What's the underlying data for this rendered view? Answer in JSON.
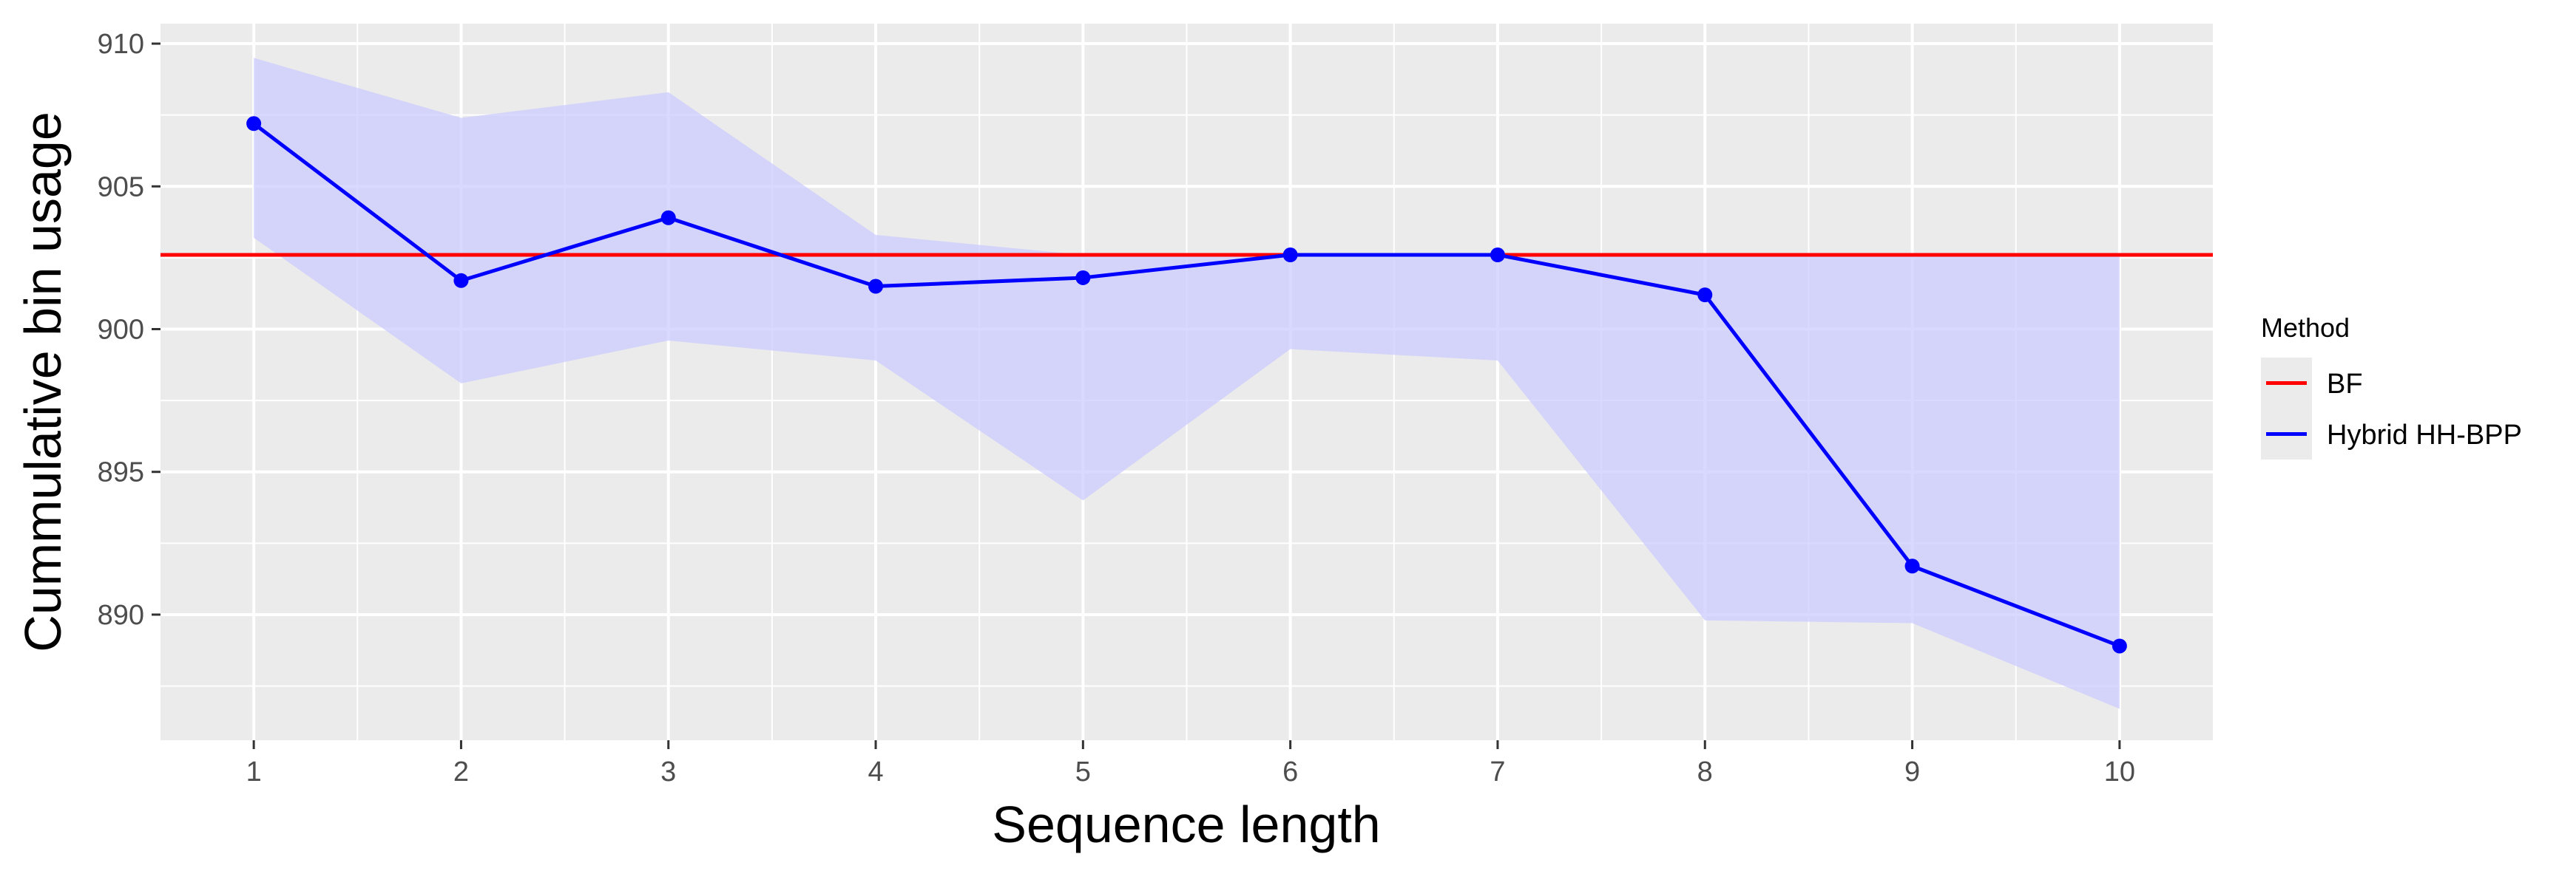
{
  "chart_data": {
    "type": "line",
    "xlabel": "Sequence length",
    "ylabel": "Cummulative bin usage",
    "xlim": [
      0.55,
      10.45
    ],
    "ylim": [
      885.6,
      910.7
    ],
    "x_ticks": [
      1,
      2,
      3,
      4,
      5,
      6,
      7,
      8,
      9,
      10
    ],
    "y_ticks": [
      890,
      895,
      900,
      905,
      910
    ],
    "grid": true,
    "legend": {
      "title": "Method",
      "position": "right"
    },
    "series": [
      {
        "name": "BF",
        "color": "#ff0000",
        "kind": "hline",
        "y": 902.6
      },
      {
        "name": "Hybrid HH-BPP",
        "color": "#0000ff",
        "kind": "line-points",
        "x": [
          1,
          2,
          3,
          4,
          5,
          6,
          7,
          8,
          9,
          10
        ],
        "values": [
          907.2,
          901.7,
          903.9,
          901.5,
          901.8,
          902.6,
          902.6,
          901.2,
          891.7,
          888.9
        ],
        "ribbon_upper": [
          909.5,
          907.4,
          908.3,
          903.3,
          902.6,
          902.6,
          902.6,
          902.6,
          902.6,
          902.6
        ],
        "ribbon_lower": [
          903.2,
          898.1,
          899.6,
          898.9,
          894.0,
          899.3,
          898.9,
          889.8,
          889.7,
          886.7
        ],
        "ribbon_color": "#ccccff"
      }
    ]
  }
}
